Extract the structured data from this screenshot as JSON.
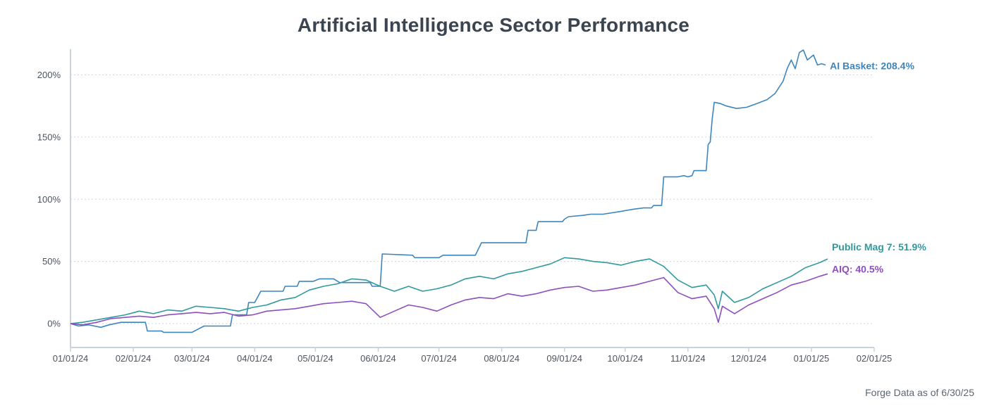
{
  "chart_data": {
    "type": "line",
    "title": "Artificial Intelligence Sector Performance",
    "footer": "Forge Data as of 6/30/25",
    "xlim": [
      "2024-01-01",
      "2025-02-01"
    ],
    "ylim": [
      -20,
      220
    ],
    "x_ticks": [
      "01/01/24",
      "02/01/24",
      "03/01/24",
      "04/01/24",
      "05/01/24",
      "06/01/24",
      "07/01/24",
      "08/01/24",
      "09/01/24",
      "10/01/24",
      "11/01/24",
      "12/01/24",
      "01/01/25",
      "02/01/25"
    ],
    "y_ticks": [
      {
        "value": 0,
        "label": "0%"
      },
      {
        "value": 50,
        "label": "50%"
      },
      {
        "value": 100,
        "label": "100%"
      },
      {
        "value": 150,
        "label": "150%"
      },
      {
        "value": 200,
        "label": "200%"
      }
    ],
    "grid": true,
    "series": [
      {
        "name": "AI Basket",
        "end_label": "AI Basket: 208.4%",
        "color": "#3d86bd",
        "points": [
          [
            "2024-01-01",
            0
          ],
          [
            "2024-01-05",
            -2
          ],
          [
            "2024-01-10",
            -1
          ],
          [
            "2024-01-16",
            -3
          ],
          [
            "2024-01-20",
            -1
          ],
          [
            "2024-01-26",
            1
          ],
          [
            "2024-02-01",
            1
          ],
          [
            "2024-02-07",
            1
          ],
          [
            "2024-02-08",
            -6
          ],
          [
            "2024-02-15",
            -6
          ],
          [
            "2024-02-16",
            -7
          ],
          [
            "2024-02-28",
            -7
          ],
          [
            "2024-03-01",
            -7
          ],
          [
            "2024-03-07",
            -2
          ],
          [
            "2024-03-20",
            -2
          ],
          [
            "2024-03-21",
            7
          ],
          [
            "2024-03-28",
            7
          ],
          [
            "2024-03-29",
            17
          ],
          [
            "2024-04-01",
            17
          ],
          [
            "2024-04-04",
            26
          ],
          [
            "2024-04-15",
            26
          ],
          [
            "2024-04-16",
            30
          ],
          [
            "2024-04-22",
            30
          ],
          [
            "2024-04-23",
            34
          ],
          [
            "2024-04-30",
            34
          ],
          [
            "2024-05-03",
            36
          ],
          [
            "2024-05-10",
            36
          ],
          [
            "2024-05-13",
            33
          ],
          [
            "2024-05-28",
            33
          ],
          [
            "2024-05-29",
            30
          ],
          [
            "2024-06-02",
            30
          ],
          [
            "2024-06-03",
            56
          ],
          [
            "2024-06-18",
            55
          ],
          [
            "2024-06-19",
            53
          ],
          [
            "2024-06-30",
            53
          ],
          [
            "2024-07-01",
            53
          ],
          [
            "2024-07-03",
            55
          ],
          [
            "2024-07-19",
            55
          ],
          [
            "2024-07-22",
            65
          ],
          [
            "2024-08-13",
            65
          ],
          [
            "2024-08-14",
            75
          ],
          [
            "2024-08-18",
            75
          ],
          [
            "2024-08-19",
            82
          ],
          [
            "2024-08-31",
            82
          ],
          [
            "2024-09-01",
            84
          ],
          [
            "2024-09-03",
            86
          ],
          [
            "2024-09-10",
            87
          ],
          [
            "2024-09-14",
            88
          ],
          [
            "2024-09-20",
            88
          ],
          [
            "2024-09-28",
            90
          ],
          [
            "2024-10-05",
            92
          ],
          [
            "2024-10-10",
            93
          ],
          [
            "2024-10-14",
            93
          ],
          [
            "2024-10-15",
            95
          ],
          [
            "2024-10-19",
            95
          ],
          [
            "2024-10-20",
            118
          ],
          [
            "2024-10-27",
            118
          ],
          [
            "2024-10-30",
            119
          ],
          [
            "2024-11-01",
            118
          ],
          [
            "2024-11-03",
            119
          ],
          [
            "2024-11-04",
            123
          ],
          [
            "2024-11-10",
            123
          ],
          [
            "2024-11-11",
            144
          ],
          [
            "2024-11-12",
            146
          ],
          [
            "2024-11-13",
            165
          ],
          [
            "2024-11-14",
            178
          ],
          [
            "2024-11-17",
            177
          ],
          [
            "2024-11-20",
            175
          ],
          [
            "2024-11-25",
            173
          ],
          [
            "2024-11-30",
            174
          ],
          [
            "2024-12-05",
            177
          ],
          [
            "2024-12-10",
            180
          ],
          [
            "2024-12-14",
            185
          ],
          [
            "2024-12-18",
            195
          ],
          [
            "2024-12-20",
            205
          ],
          [
            "2024-12-22",
            212
          ],
          [
            "2024-12-24",
            205
          ],
          [
            "2024-12-26",
            218
          ],
          [
            "2024-12-28",
            220
          ],
          [
            "2024-12-30",
            212
          ],
          [
            "2025-01-02",
            216
          ],
          [
            "2025-01-04",
            208
          ],
          [
            "2025-01-06",
            209
          ],
          [
            "2025-01-08",
            208
          ]
        ]
      },
      {
        "name": "Public Mag 7",
        "end_label": "Public Mag 7: 51.9%",
        "color": "#2f9a9e",
        "points": [
          [
            "2024-01-01",
            0
          ],
          [
            "2024-01-07",
            1
          ],
          [
            "2024-01-14",
            3
          ],
          [
            "2024-01-21",
            5
          ],
          [
            "2024-01-28",
            7
          ],
          [
            "2024-02-04",
            10
          ],
          [
            "2024-02-11",
            8
          ],
          [
            "2024-02-18",
            11
          ],
          [
            "2024-02-25",
            10
          ],
          [
            "2024-03-03",
            14
          ],
          [
            "2024-03-10",
            13
          ],
          [
            "2024-03-17",
            12
          ],
          [
            "2024-03-24",
            10
          ],
          [
            "2024-03-31",
            13
          ],
          [
            "2024-04-07",
            15
          ],
          [
            "2024-04-14",
            19
          ],
          [
            "2024-04-21",
            21
          ],
          [
            "2024-04-28",
            27
          ],
          [
            "2024-05-05",
            30
          ],
          [
            "2024-05-12",
            32
          ],
          [
            "2024-05-19",
            36
          ],
          [
            "2024-05-26",
            35
          ],
          [
            "2024-06-02",
            30
          ],
          [
            "2024-06-09",
            26
          ],
          [
            "2024-06-16",
            30
          ],
          [
            "2024-06-23",
            26
          ],
          [
            "2024-06-30",
            28
          ],
          [
            "2024-07-07",
            31
          ],
          [
            "2024-07-14",
            36
          ],
          [
            "2024-07-21",
            38
          ],
          [
            "2024-07-28",
            36
          ],
          [
            "2024-08-04",
            40
          ],
          [
            "2024-08-11",
            42
          ],
          [
            "2024-08-18",
            45
          ],
          [
            "2024-08-25",
            48
          ],
          [
            "2024-09-01",
            53
          ],
          [
            "2024-09-08",
            52
          ],
          [
            "2024-09-15",
            50
          ],
          [
            "2024-09-22",
            49
          ],
          [
            "2024-09-29",
            47
          ],
          [
            "2024-10-06",
            50
          ],
          [
            "2024-10-13",
            52
          ],
          [
            "2024-10-20",
            46
          ],
          [
            "2024-10-27",
            35
          ],
          [
            "2024-11-03",
            29
          ],
          [
            "2024-11-10",
            31
          ],
          [
            "2024-11-14",
            23
          ],
          [
            "2024-11-16",
            12
          ],
          [
            "2024-11-18",
            26
          ],
          [
            "2024-11-24",
            17
          ],
          [
            "2024-12-01",
            21
          ],
          [
            "2024-12-08",
            28
          ],
          [
            "2024-12-15",
            33
          ],
          [
            "2024-12-22",
            38
          ],
          [
            "2024-12-29",
            45
          ],
          [
            "2025-01-05",
            49
          ],
          [
            "2025-01-09",
            52
          ]
        ]
      },
      {
        "name": "AIQ",
        "end_label": "AIQ: 40.5%",
        "color": "#8e4fbe",
        "points": [
          [
            "2024-01-01",
            0
          ],
          [
            "2024-01-07",
            -1
          ],
          [
            "2024-01-14",
            1
          ],
          [
            "2024-01-21",
            4
          ],
          [
            "2024-01-28",
            5
          ],
          [
            "2024-02-04",
            6
          ],
          [
            "2024-02-11",
            5
          ],
          [
            "2024-02-18",
            7
          ],
          [
            "2024-02-25",
            8
          ],
          [
            "2024-03-03",
            9
          ],
          [
            "2024-03-10",
            8
          ],
          [
            "2024-03-17",
            9
          ],
          [
            "2024-03-24",
            6
          ],
          [
            "2024-03-31",
            7
          ],
          [
            "2024-04-07",
            10
          ],
          [
            "2024-04-14",
            11
          ],
          [
            "2024-04-21",
            12
          ],
          [
            "2024-04-28",
            14
          ],
          [
            "2024-05-05",
            16
          ],
          [
            "2024-05-12",
            17
          ],
          [
            "2024-05-19",
            18
          ],
          [
            "2024-05-26",
            16
          ],
          [
            "2024-06-02",
            5
          ],
          [
            "2024-06-09",
            10
          ],
          [
            "2024-06-16",
            15
          ],
          [
            "2024-06-23",
            13
          ],
          [
            "2024-06-30",
            10
          ],
          [
            "2024-07-07",
            15
          ],
          [
            "2024-07-14",
            19
          ],
          [
            "2024-07-21",
            21
          ],
          [
            "2024-07-28",
            20
          ],
          [
            "2024-08-04",
            24
          ],
          [
            "2024-08-11",
            22
          ],
          [
            "2024-08-18",
            24
          ],
          [
            "2024-08-25",
            27
          ],
          [
            "2024-09-01",
            29
          ],
          [
            "2024-09-08",
            30
          ],
          [
            "2024-09-15",
            26
          ],
          [
            "2024-09-22",
            27
          ],
          [
            "2024-09-29",
            29
          ],
          [
            "2024-10-06",
            31
          ],
          [
            "2024-10-13",
            34
          ],
          [
            "2024-10-20",
            37
          ],
          [
            "2024-10-27",
            25
          ],
          [
            "2024-11-03",
            20
          ],
          [
            "2024-11-10",
            22
          ],
          [
            "2024-11-14",
            12
          ],
          [
            "2024-11-16",
            1
          ],
          [
            "2024-11-18",
            14
          ],
          [
            "2024-11-24",
            8
          ],
          [
            "2024-12-01",
            15
          ],
          [
            "2024-12-08",
            20
          ],
          [
            "2024-12-15",
            25
          ],
          [
            "2024-12-22",
            31
          ],
          [
            "2024-12-29",
            34
          ],
          [
            "2025-01-05",
            38
          ],
          [
            "2025-01-09",
            40
          ]
        ]
      }
    ]
  }
}
